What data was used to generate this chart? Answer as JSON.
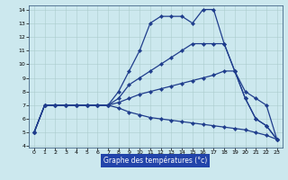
{
  "xlabel": "Graphe des températures (°c)",
  "x_hours": [
    0,
    1,
    2,
    3,
    4,
    5,
    6,
    7,
    8,
    9,
    10,
    11,
    12,
    13,
    14,
    15,
    16,
    17,
    18,
    19,
    20,
    21,
    22,
    23
  ],
  "line1_y": [
    5,
    7,
    7,
    7,
    7,
    7,
    7,
    7,
    8,
    9.5,
    11,
    13,
    13.5,
    13.5,
    13.5,
    13,
    14,
    14,
    11.5,
    9.5,
    7.5,
    6,
    5.5,
    4.5
  ],
  "line2_y": [
    5,
    7,
    7,
    7,
    7,
    7,
    7,
    7,
    7.5,
    8.5,
    9,
    9.5,
    10,
    10.5,
    11,
    11.5,
    11.5,
    11.5,
    11.5,
    9.5,
    7.5,
    6,
    5.5,
    4.5
  ],
  "line3_y": [
    5,
    7,
    7,
    7,
    7,
    7,
    7,
    7,
    7.2,
    7.5,
    7.8,
    8.0,
    8.2,
    8.4,
    8.6,
    8.8,
    9.0,
    9.2,
    9.5,
    9.5,
    8.0,
    7.5,
    7.0,
    4.5
  ],
  "line4_y": [
    5,
    7,
    7,
    7,
    7,
    7,
    7,
    7,
    6.8,
    6.5,
    6.3,
    6.1,
    6.0,
    5.9,
    5.8,
    5.7,
    5.6,
    5.5,
    5.4,
    5.3,
    5.2,
    5.0,
    4.8,
    4.5
  ],
  "bg_color": "#cce8ee",
  "line_color": "#1f3d8c",
  "grid_color": "#aacccc",
  "axis_label_bg": "#2244aa",
  "ylim_min": 4,
  "ylim_max": 14,
  "yticks": [
    4,
    5,
    6,
    7,
    8,
    9,
    10,
    11,
    12,
    13,
    14
  ],
  "xticks": [
    0,
    1,
    2,
    3,
    4,
    5,
    6,
    7,
    8,
    9,
    10,
    11,
    12,
    13,
    14,
    15,
    16,
    17,
    18,
    19,
    20,
    21,
    22,
    23
  ]
}
